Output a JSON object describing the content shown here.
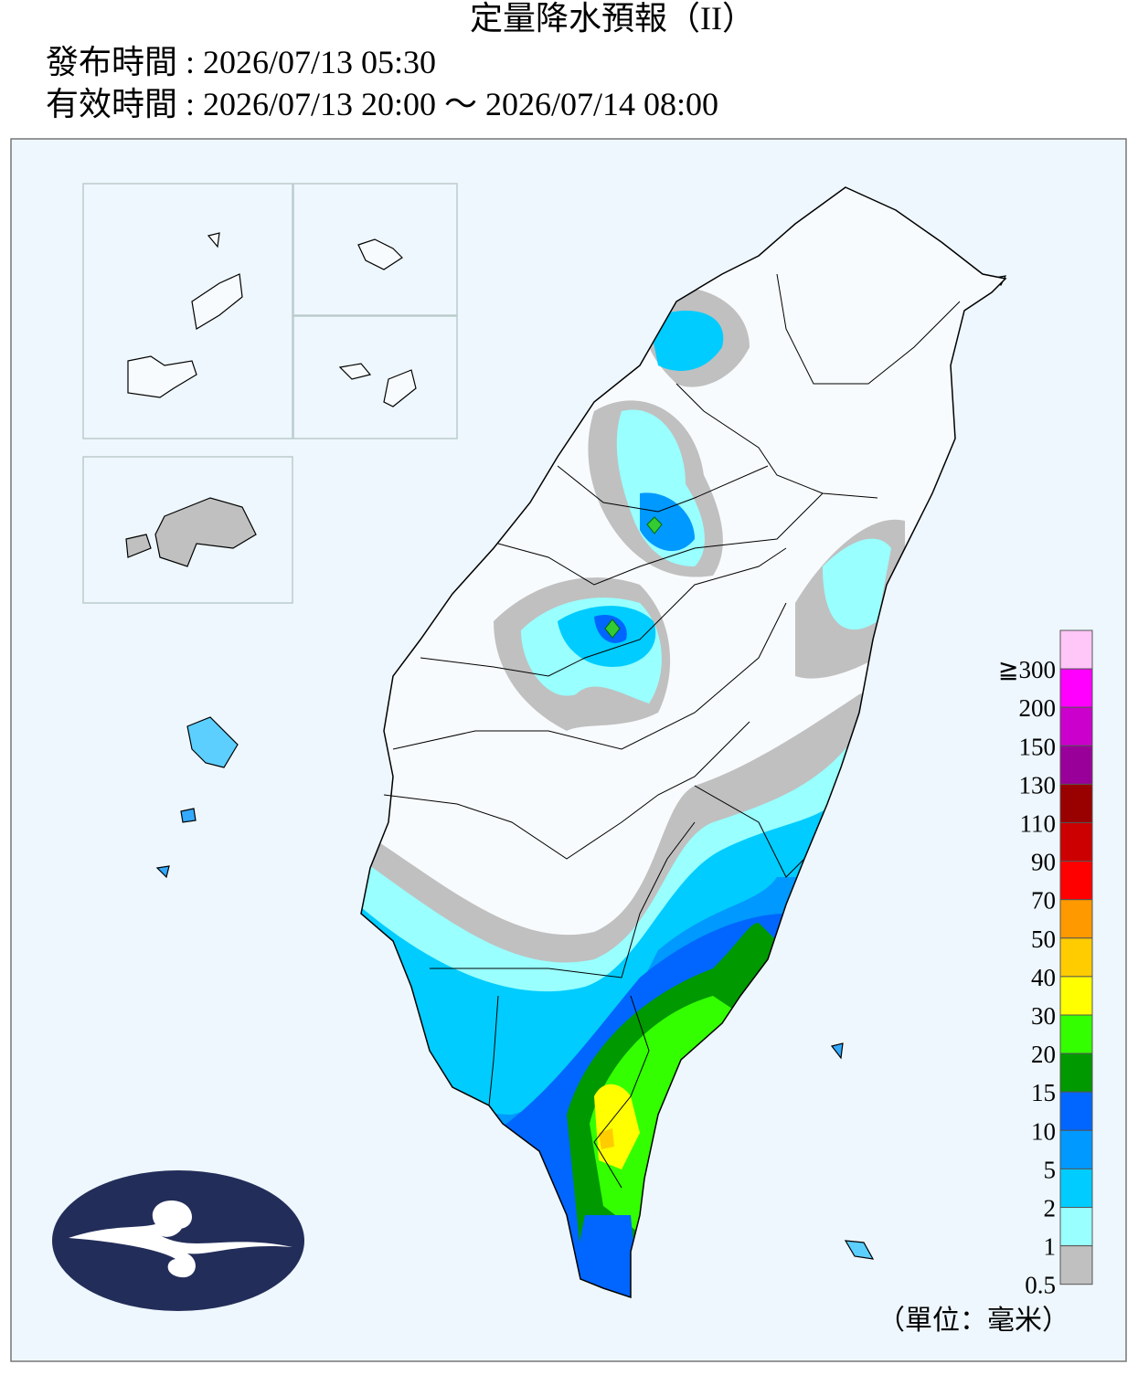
{
  "header": {
    "title": "定量降水預報（II）",
    "issued": "發布時間 : 2026/07/13 05:30",
    "valid": "有效時間 : 2026/07/13 20:00 ～ 2026/07/14 08:00"
  },
  "legend": {
    "unit": "（單位：毫米）",
    "bins": [
      {
        "label": "≧300",
        "color": "#ffc6f8"
      },
      {
        "label": "200",
        "color": "#ff00ff"
      },
      {
        "label": "150",
        "color": "#cc00cc"
      },
      {
        "label": "130",
        "color": "#990099"
      },
      {
        "label": "110",
        "color": "#990000"
      },
      {
        "label": "90",
        "color": "#cc0000"
      },
      {
        "label": "70",
        "color": "#ff0000"
      },
      {
        "label": "50",
        "color": "#ff9900"
      },
      {
        "label": "40",
        "color": "#ffcc00"
      },
      {
        "label": "30",
        "color": "#ffff00"
      },
      {
        "label": "20",
        "color": "#33ff00"
      },
      {
        "label": "15",
        "color": "#009900"
      },
      {
        "label": "10",
        "color": "#0066ff"
      },
      {
        "label": "5",
        "color": "#0099ff"
      },
      {
        "label": "2",
        "color": "#00ccff"
      },
      {
        "label": "1",
        "color": "#99ffff"
      },
      {
        "label": "0.5",
        "color": "#c0c0c0"
      }
    ]
  }
}
